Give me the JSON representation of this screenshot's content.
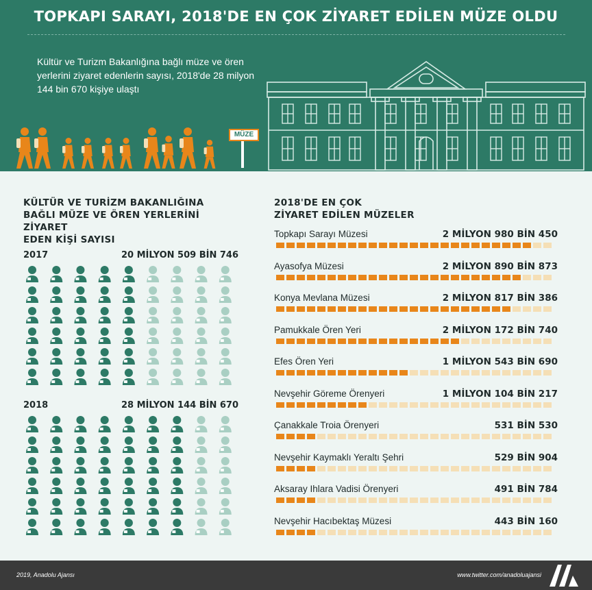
{
  "header": {
    "title": "TOPKAPI SARAYI, 2018'DE EN ÇOK ZİYARET EDİLEN MÜZE OLDU",
    "intro": "Kültür ve Turizm Bakanlığına bağlı müze ve ören yerlerini ziyaret edenlerin sayısı, 2018'de 28 milyon 144 bin 670 kişiye ulaştı",
    "sign_label": "MÜZE"
  },
  "colors": {
    "teal": "#2d7a66",
    "teal_light": "#a9cfc3",
    "orange": "#e8861a",
    "orange_light": "#f5dfb6",
    "text": "#1f2a2a"
  },
  "left": {
    "title_lines": [
      "KÜLTÜR VE TURİZM BAKANLIĞINA",
      "BAĞLI MÜZE VE ÖREN YERLERİNİ ZİYARET",
      "EDEN KİŞİ SAYISI"
    ]
  },
  "right": {
    "title_lines": [
      "2018'DE EN ÇOK",
      "ZİYARET EDİLEN MÜZELER"
    ]
  },
  "chart_data": [
    {
      "type": "bar",
      "title": "KÜLTÜR VE TURİZM BAKANLIĞINA BAĞLI MÜZE VE ÖREN YERLERİNİ ZİYARET EDEN KİŞİ SAYISI",
      "categories": [
        "2017",
        "2018"
      ],
      "value_labels": [
        "20 MİLYON 509 BİN 746",
        "28 MİLYON 144 BİN 670"
      ],
      "values": [
        20509746,
        28144670
      ],
      "icons_per_row": 9,
      "icon_rows": 6,
      "filled_icons": [
        [
          5,
          5,
          5,
          5,
          5,
          5
        ],
        [
          7,
          7,
          7,
          7,
          7,
          7
        ]
      ]
    },
    {
      "type": "bar",
      "title": "2018'DE EN ÇOK ZİYARET EDİLEN MÜZELER",
      "categories": [
        "Topkapı Sarayı Müzesi",
        "Ayasofya Müzesi",
        "Konya Mevlana Müzesi",
        "Pamukkale Ören Yeri",
        "Efes Ören Yeri",
        "Nevşehir Göreme Örenyeri",
        "Çanakkale Troia Örenyeri",
        "Nevşehir Kaymaklı Yeraltı Şehri",
        "Aksaray Ihlara Vadisi Örenyeri",
        "Nevşehir Hacıbektaş Müzesi"
      ],
      "value_labels": [
        "2 MİLYON 980 BİN 450",
        "2 MİLYON 890 BİN 873",
        "2 MİLYON 817 BİN 386",
        "2 MİLYON 172 BİN 740",
        "1 MİLYON 543 BİN 690",
        "1 MİLYON 104 BİN 217",
        "531 BİN 530",
        "529 BİN 904",
        "491 BİN 784",
        "443 BİN 160"
      ],
      "values": [
        2980450,
        2890873,
        2817386,
        2172740,
        1543690,
        1104217,
        531530,
        529904,
        491784,
        443160
      ],
      "scale_max": 3270000
    }
  ],
  "footer": {
    "left": "2019, Anadolu Ajansı",
    "right": "www.twitter.com/anadoluajansi",
    "logo_text": "AA"
  }
}
